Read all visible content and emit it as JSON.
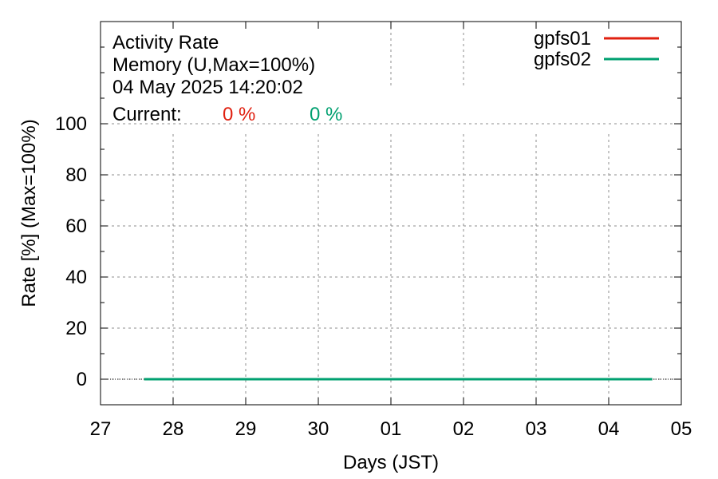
{
  "chart_data": {
    "type": "line",
    "title_lines": [
      "Activity Rate",
      "Memory (U,Max=100%)",
      "04 May 2025 14:20:02"
    ],
    "current_label": "Current:",
    "current_values": [
      {
        "text": "0 %",
        "color": "#e02010"
      },
      {
        "text": "0 %",
        "color": "#00a070"
      }
    ],
    "xlabel": "Days (JST)",
    "ylabel": "Rate [%]  (Max=100%)",
    "x_tick_labels": [
      "27",
      "28",
      "29",
      "30",
      "01",
      "02",
      "03",
      "04",
      "05"
    ],
    "y_ticks": [
      0,
      20,
      40,
      60,
      80,
      100
    ],
    "ylim": [
      -10,
      140
    ],
    "grid": true,
    "legend_position": "top-right",
    "series": [
      {
        "name": "gpfs01",
        "color": "#e02010",
        "x_start": "27.6",
        "x_end": "04.6",
        "value": 0
      },
      {
        "name": "gpfs02",
        "color": "#00a070",
        "x_start": "27.6",
        "x_end": "04.6",
        "value": 0
      }
    ]
  }
}
